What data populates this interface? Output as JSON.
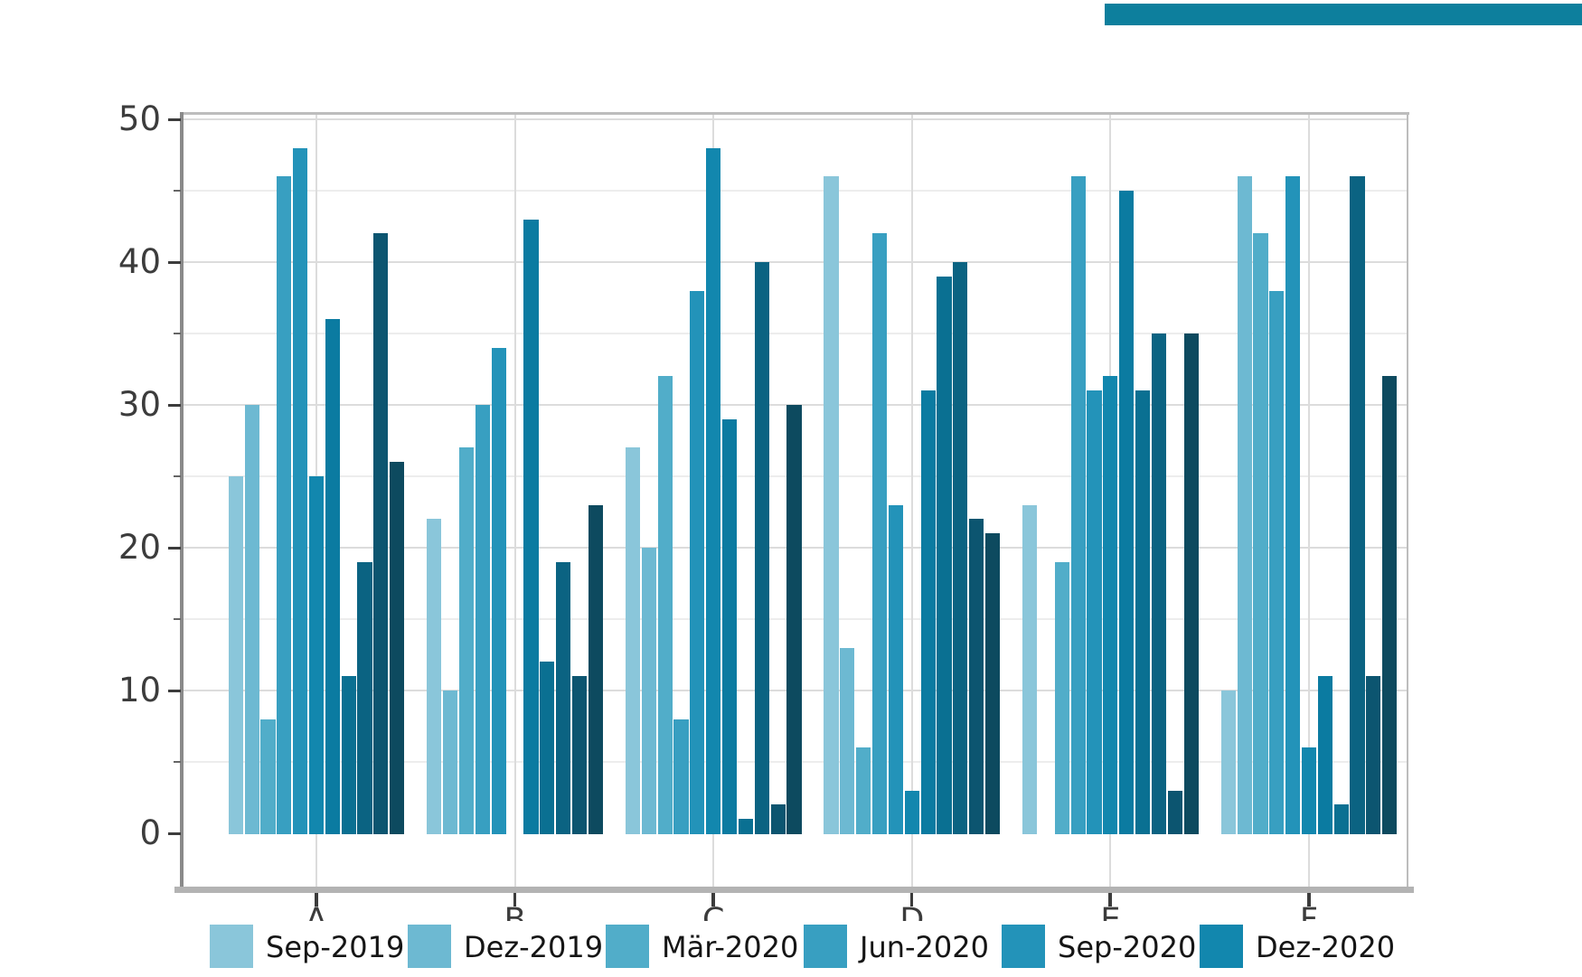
{
  "chart_data": {
    "type": "bar",
    "title": "",
    "xlabel": "",
    "ylabel": "",
    "categories": [
      "A",
      "B",
      "C",
      "D",
      "E",
      "F"
    ],
    "yticks": [
      "0",
      "10",
      "20",
      "30",
      "40",
      "50"
    ],
    "ylim": [
      0,
      50
    ],
    "grid": "on",
    "legend_position": "bottom",
    "series": [
      {
        "legend_label": "Sep-2019",
        "color": "#8ac6da",
        "values": [
          25,
          22,
          27,
          46,
          23,
          10
        ]
      },
      {
        "legend_label": "Dez-2019",
        "color": "#6db9d2",
        "values": [
          30,
          10,
          20,
          13,
          0,
          46
        ]
      },
      {
        "legend_label": "Mär-2020",
        "color": "#51adc9",
        "values": [
          8,
          27,
          32,
          6,
          19,
          42
        ]
      },
      {
        "legend_label": "Jun-2020",
        "color": "#389fc1",
        "values": [
          46,
          30,
          8,
          42,
          46,
          38
        ]
      },
      {
        "legend_label": "Sep-2020",
        "color": "#2393b9",
        "values": [
          48,
          34,
          38,
          23,
          31,
          46
        ]
      },
      {
        "legend_label": "Dez-2020",
        "color": "#1287ae",
        "values": [
          25,
          0,
          48,
          3,
          32,
          6
        ]
      },
      {
        "legend_label": null,
        "color": "#0b7ba1",
        "values": [
          36,
          43,
          29,
          31,
          45,
          11
        ]
      },
      {
        "legend_label": null,
        "color": "#0a7092",
        "values": [
          11,
          12,
          1,
          39,
          31,
          2
        ]
      },
      {
        "legend_label": null,
        "color": "#0b6382",
        "values": [
          19,
          19,
          40,
          40,
          35,
          46
        ]
      },
      {
        "legend_label": null,
        "color": "#0c5570",
        "values": [
          42,
          11,
          2,
          22,
          3,
          11
        ]
      },
      {
        "legend_label": null,
        "color": "#0d4a5f",
        "values": [
          26,
          23,
          30,
          21,
          35,
          32
        ]
      }
    ]
  },
  "legend": {
    "items": [
      "Sep-2019",
      "Dez-2019",
      "Mär-2020",
      "Jun-2020",
      "Sep-2020",
      "Dez-2020"
    ]
  },
  "decoration": {
    "top_right_bar_color": "#0d7f9d"
  },
  "colors": {
    "grid_major": "#dcdcdc",
    "grid_minor": "#ededed",
    "frame": "#bdbdbd",
    "left_spine": "#8a8a8a",
    "bottom_spine": "#b3b3b3",
    "tick_color": "#3c3c3c"
  }
}
